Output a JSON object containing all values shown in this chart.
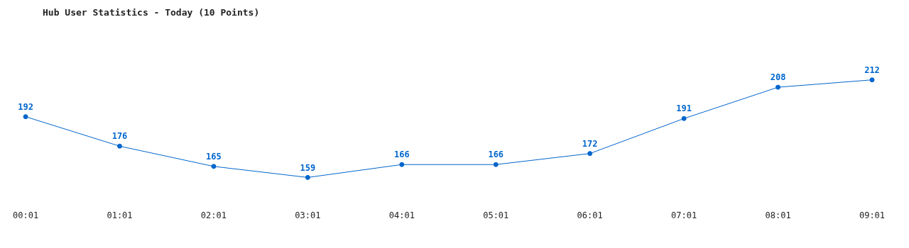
{
  "chart_data": {
    "type": "line",
    "title": "Hub User Statistics - Today (10 Points)",
    "categories": [
      "00:01",
      "01:01",
      "02:01",
      "03:01",
      "04:01",
      "05:01",
      "06:01",
      "07:01",
      "08:01",
      "09:01"
    ],
    "values": [
      192,
      176,
      165,
      159,
      166,
      166,
      172,
      191,
      208,
      212
    ],
    "color": "#0066cc",
    "data_labels": true,
    "grid": false,
    "legend": false,
    "marker": "circle",
    "line_style": "solid"
  }
}
